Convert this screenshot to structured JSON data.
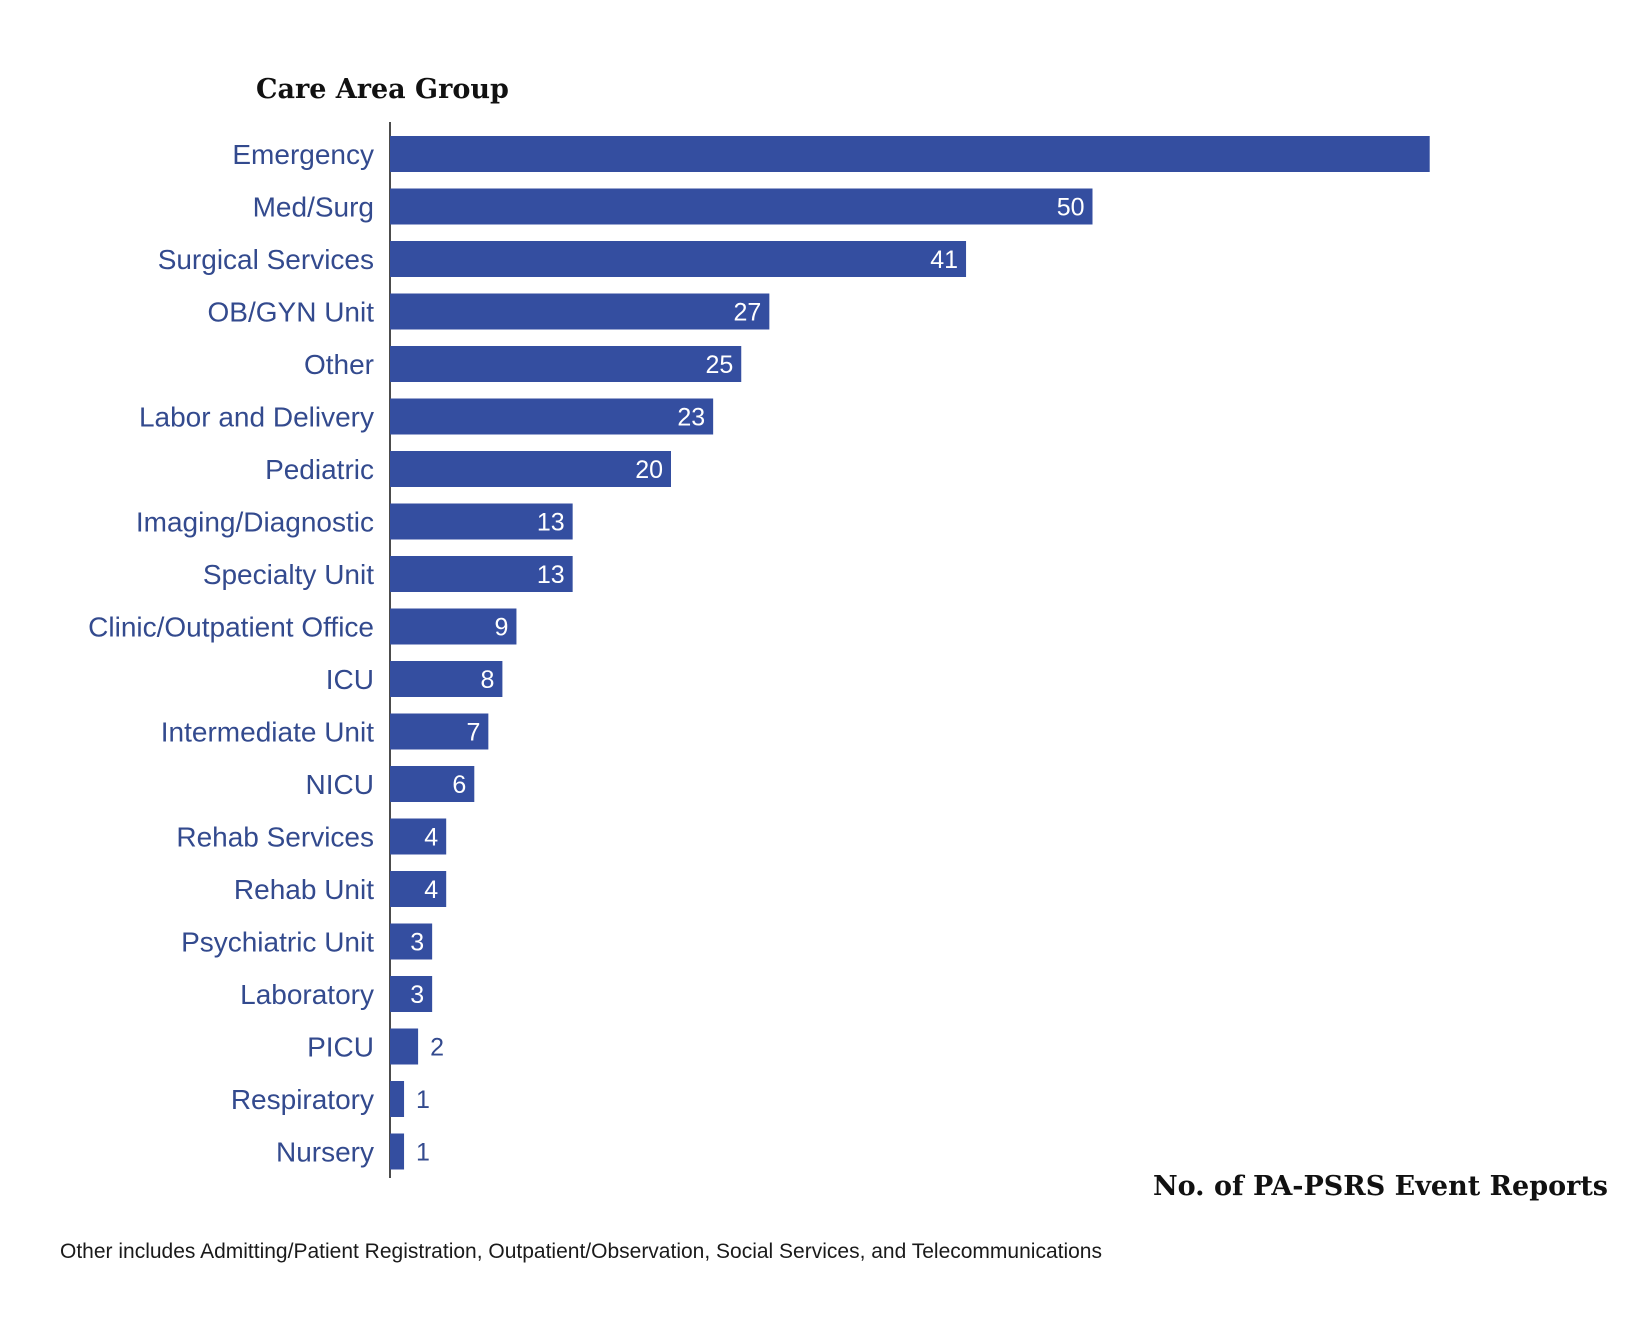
{
  "chart_data": {
    "type": "bar",
    "orientation": "horizontal",
    "ylabel": "Care Area Group",
    "xlabel": "No. of PA-PSRS Event Reports",
    "footnote": "Other includes Admitting/Patient Registration, Outpatient/Observation, Social Services, and Telecommunications",
    "categories": [
      "Emergency",
      "Med/Surg",
      "Surgical Services",
      "OB/GYN Unit",
      "Other",
      "Labor and Delivery",
      "Pediatric",
      "Imaging/Diagnostic",
      "Specialty Unit",
      "Clinic/Outpatient Office",
      "ICU",
      "Intermediate Unit",
      "NICU",
      "Rehab Services",
      "Rehab Unit",
      "Psychiatric Unit",
      "Laboratory",
      "PICU",
      "Respiratory",
      "Nursery"
    ],
    "values": [
      74,
      50,
      41,
      27,
      25,
      23,
      20,
      13,
      13,
      9,
      8,
      7,
      6,
      4,
      4,
      3,
      3,
      2,
      1,
      1
    ],
    "value_labels": [
      "",
      "50",
      "41",
      "27",
      "25",
      "23",
      "20",
      "13",
      "13",
      "9",
      "8",
      "7",
      "6",
      "4",
      "4",
      "3",
      "3",
      "2",
      "1",
      "1"
    ],
    "grid": false,
    "legend": "none",
    "bar_color": "#344ea0",
    "label_color": "#334a8e",
    "value_inside_color": "#ffffff",
    "value_outside_color": "#334a8e"
  }
}
